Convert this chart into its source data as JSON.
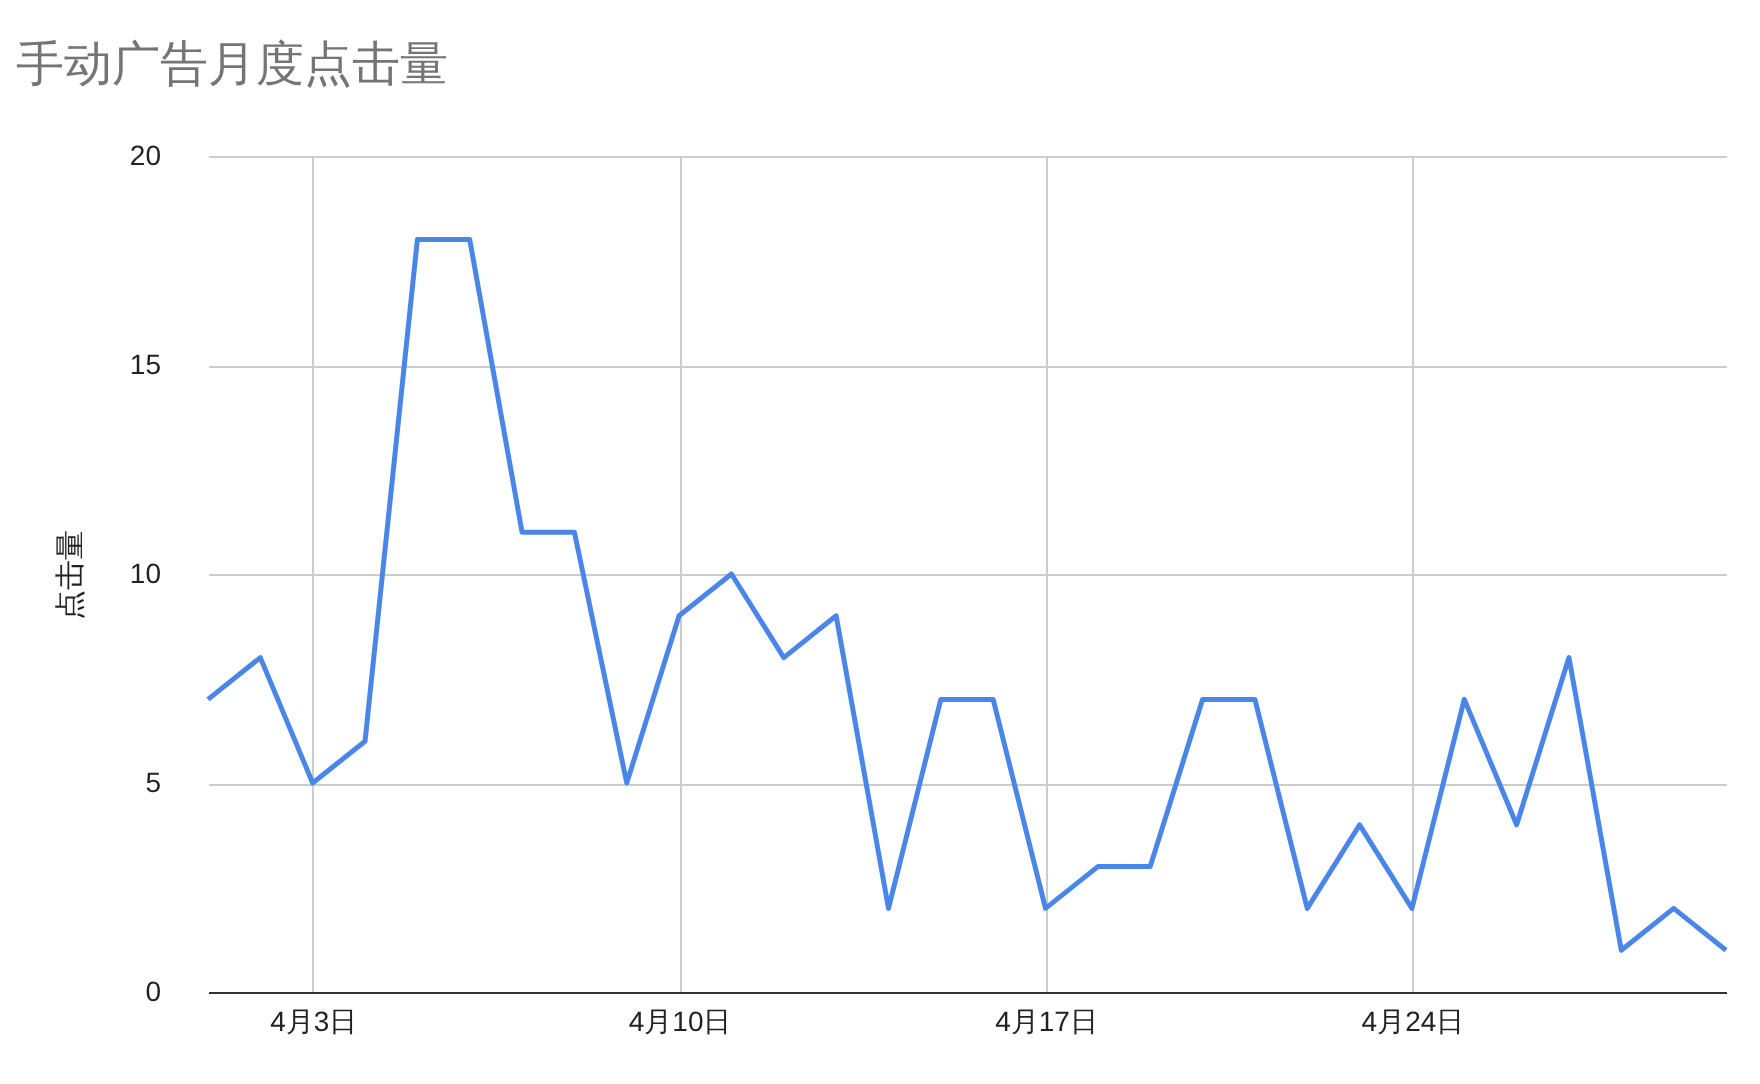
{
  "chart_data": {
    "type": "line",
    "title": "手动广告月度点击量",
    "ylabel": "点击量",
    "x": [
      "--04-01",
      "--04-02",
      "--04-03",
      "--04-04",
      "--04-05",
      "--04-06",
      "--04-07",
      "--04-08",
      "--04-09",
      "--04-10",
      "--04-11",
      "--04-12",
      "--04-13",
      "--04-14",
      "--04-15",
      "--04-16",
      "--04-17",
      "--04-18",
      "--04-19",
      "--04-20",
      "--04-21",
      "--04-22",
      "--04-23",
      "--04-24",
      "--04-25",
      "--04-26",
      "--04-27",
      "--04-28",
      "--04-29",
      "--04-30"
    ],
    "series": [
      {
        "color": "#4a86e8",
        "values": [
          7,
          8,
          5,
          6,
          18,
          18,
          11,
          11,
          5,
          9,
          10,
          8,
          9,
          2,
          7,
          7,
          2,
          3,
          3,
          7,
          7,
          2,
          4,
          2,
          7,
          4,
          8,
          1,
          2,
          1
        ]
      }
    ],
    "xlim": [
      "--04-01",
      "--04-30"
    ],
    "xticks": [
      {
        "value": "--04-03",
        "label": "4月3日"
      },
      {
        "value": "--04-10",
        "label": "4月10日"
      },
      {
        "value": "--04-17",
        "label": "4月17日"
      },
      {
        "value": "--04-24",
        "label": "4月24日"
      }
    ],
    "ylim": [
      0,
      20
    ],
    "yticks": [
      0,
      5,
      10,
      15,
      20
    ],
    "grid": true,
    "line_style": "solid",
    "marker": "none"
  }
}
